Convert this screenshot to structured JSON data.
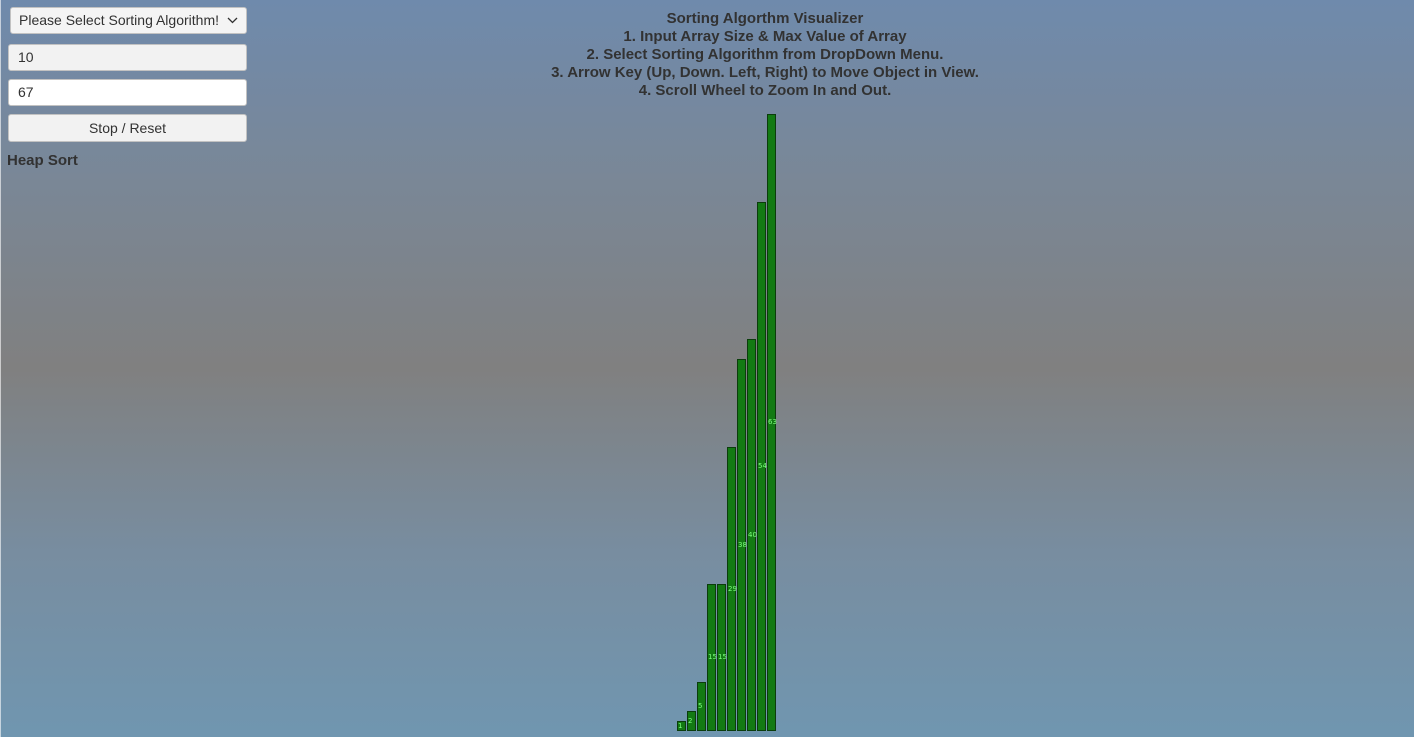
{
  "controls": {
    "algorithm_dropdown": {
      "selected": "Please Select Sorting Algorithm!",
      "icon": "chevron-down-icon"
    },
    "array_size_value": "10",
    "max_value": "67",
    "reset_button_label": "Stop / Reset"
  },
  "current_algorithm": "Heap Sort",
  "instructions": {
    "title": "Sorting Algorthm Visualizer",
    "lines": [
      "1. Input Array Size & Max Value of Array",
      "2. Select Sorting Algorithm from DropDown Menu.",
      "3. Arrow Key (Up, Down. Left, Right) to Move Object in View.",
      "4. Scroll Wheel to Zoom In and Out."
    ]
  },
  "visualization": {
    "bar_color": "#137a13",
    "label_color": "#7dff7d",
    "bars": [
      {
        "label": "1",
        "value": 1
      },
      {
        "label": "2",
        "value": 2
      },
      {
        "label": "5",
        "value": 5
      },
      {
        "label": "15",
        "value": 15
      },
      {
        "label": "15",
        "value": 15
      },
      {
        "label": "29",
        "value": 29
      },
      {
        "label": "38",
        "value": 38
      },
      {
        "label": "40",
        "value": 40
      },
      {
        "label": "54",
        "value": 54
      },
      {
        "label": "63",
        "value": 63
      }
    ]
  }
}
